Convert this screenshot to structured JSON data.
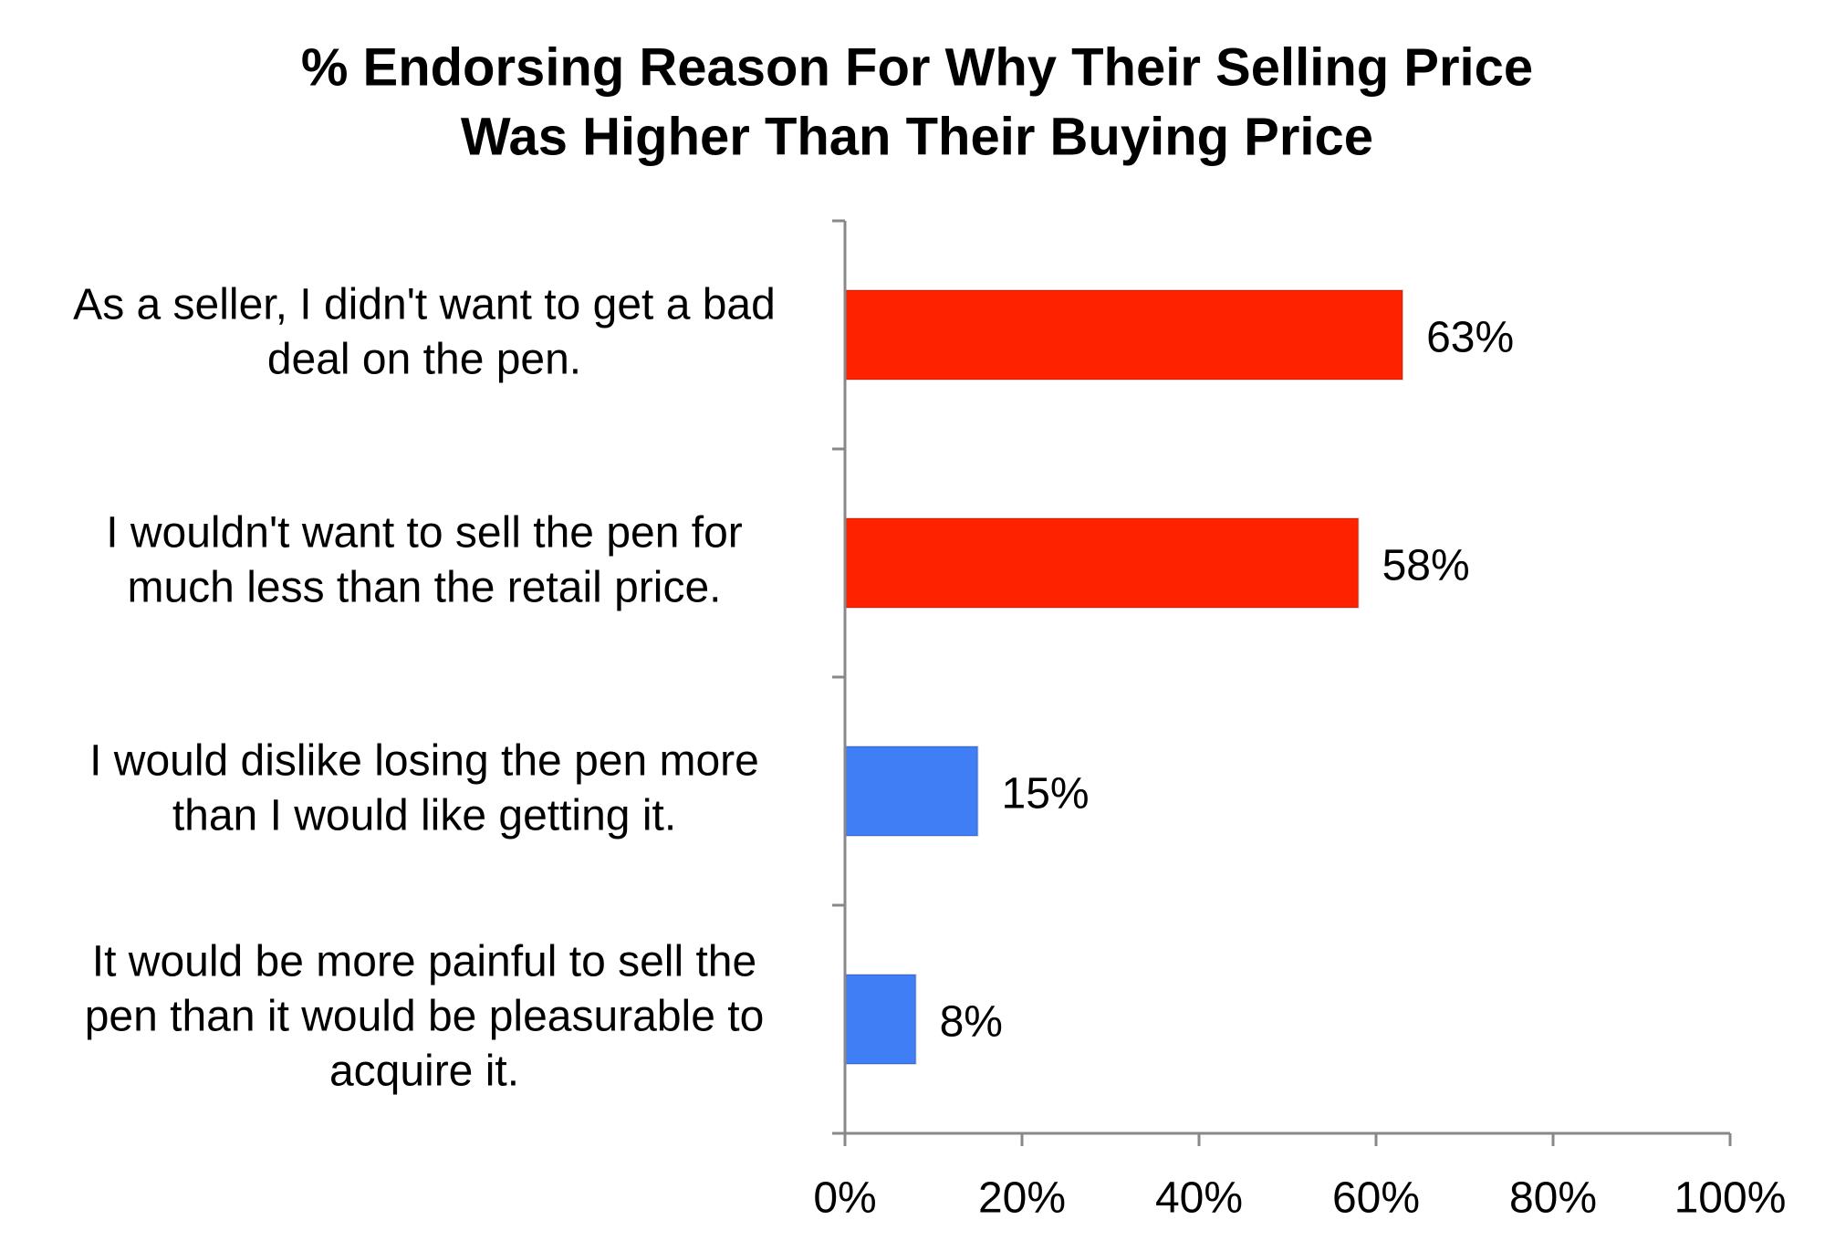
{
  "chart_data": {
    "type": "bar",
    "orientation": "horizontal",
    "title": "% Endorsing Reason For Why Their Selling Price Was Higher Than Their Buying Price",
    "title_lines": [
      "% Endorsing Reason For Why Their Selling Price",
      "Was Higher Than Their Buying Price"
    ],
    "categories": [
      "As a seller, I didn't want to get a bad deal on the pen.",
      "I wouldn't want to sell the pen for much less than the retail price.",
      "I would dislike losing the pen more than I would like getting it.",
      "It would be more painful to sell the pen than it would be pleasurable to acquire it."
    ],
    "category_lines": [
      [
        "As a seller, I didn't want to get a bad",
        "deal on the pen."
      ],
      [
        "I wouldn't want to sell the pen for",
        "much less than the retail price."
      ],
      [
        "I would dislike losing the pen more",
        "than I would like getting it."
      ],
      [
        "It would be more painful to sell the",
        "pen than it would be pleasurable to",
        "acquire it."
      ]
    ],
    "values": [
      63,
      58,
      15,
      8
    ],
    "value_labels": [
      "63%",
      "58%",
      "15%",
      "8%"
    ],
    "bar_colors": [
      "#ff2200",
      "#ff2200",
      "#3f7ef5",
      "#3f7ef5"
    ],
    "xlim": [
      0,
      100
    ],
    "x_ticks": [
      0,
      20,
      40,
      60,
      80,
      100
    ],
    "x_tick_labels": [
      "0%",
      "20%",
      "40%",
      "60%",
      "80%",
      "100%"
    ],
    "xlabel": "",
    "ylabel": "",
    "grid": false,
    "legend": "none"
  }
}
